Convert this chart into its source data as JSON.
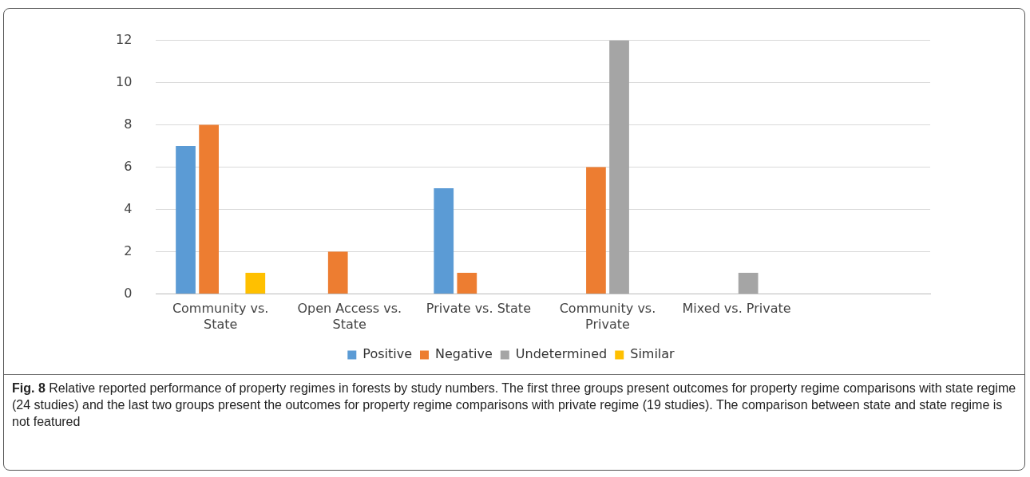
{
  "chart_data": {
    "type": "bar",
    "categories": [
      "Community vs. State",
      "Open Access vs. State",
      "Private vs. State",
      "Community vs. Private",
      "Mixed vs. Private",
      null
    ],
    "series": [
      {
        "name": "Positive",
        "color": "#5b9bd5",
        "values": [
          7,
          0,
          5,
          0,
          0,
          null
        ]
      },
      {
        "name": "Negative",
        "color": "#ed7d31",
        "values": [
          8,
          2,
          1,
          6,
          0,
          null
        ]
      },
      {
        "name": "Undetermined",
        "color": "#a5a5a5",
        "values": [
          0,
          0,
          0,
          12,
          1,
          null
        ]
      },
      {
        "name": "Similar",
        "color": "#ffc000",
        "values": [
          1,
          0,
          0,
          0,
          0,
          null
        ]
      }
    ],
    "ylim": [
      0,
      12
    ],
    "yticks": [
      0,
      2,
      4,
      6,
      8,
      10,
      12
    ],
    "grid": "y",
    "legend": "bottom",
    "annotations": [
      "Fig. 8",
      "Relative reported performance of property regimes in forests by study numbers. The first three groups present outcomes for property regime comparisons with state regime (24 studies) and the last two groups present the outcomes for property regime comparisons with private regime (19 studies). The comparison between state and state regime is not featured"
    ]
  }
}
